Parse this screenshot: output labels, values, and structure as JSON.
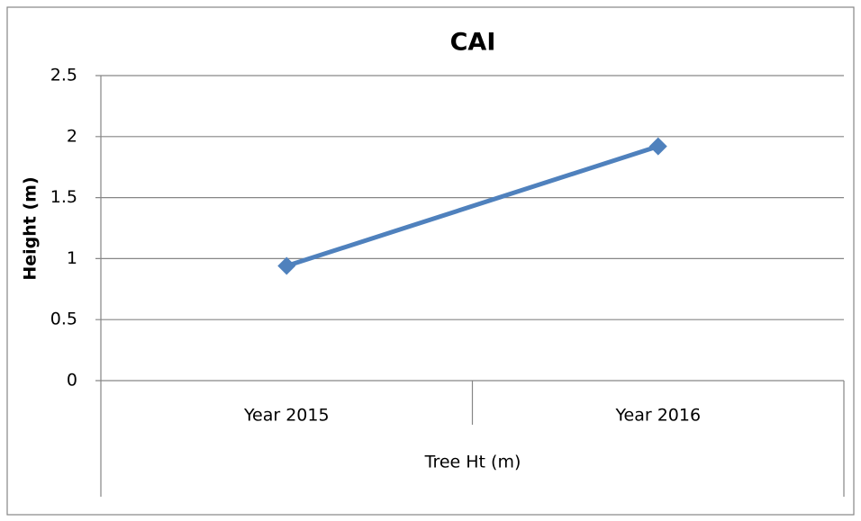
{
  "chart_data": {
    "type": "line",
    "title": "CAI",
    "y_label": "Height (m)",
    "x_label": "Tree Ht (m)",
    "categories": [
      "Year 2015",
      "Year 2016"
    ],
    "values": [
      0.94,
      1.92
    ],
    "color": "#4f81bd",
    "ylim": [
      0,
      2.5
    ],
    "yticks": [
      0,
      0.5,
      1,
      1.5,
      2,
      2.5
    ],
    "grid": true
  }
}
